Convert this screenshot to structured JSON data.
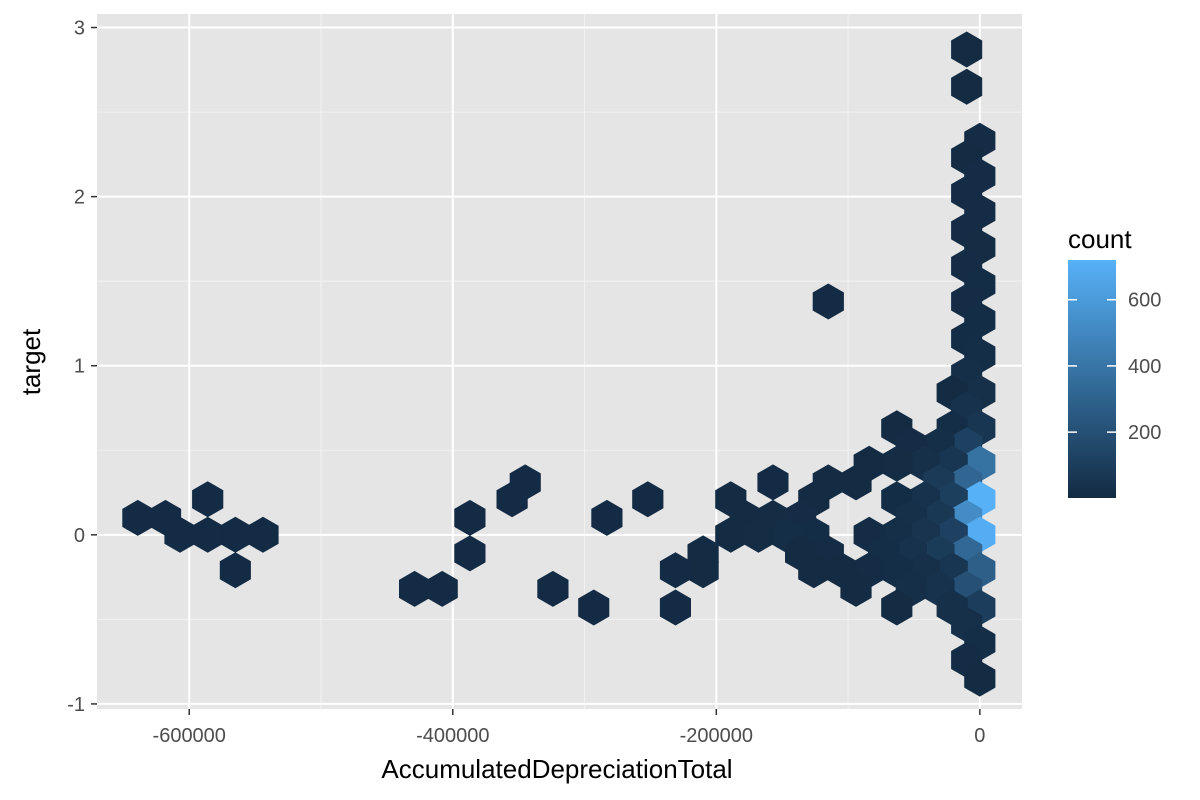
{
  "chart_data": {
    "type": "hexbin",
    "xlabel": "AccumulatedDepreciationTotal",
    "ylabel": "target",
    "xlim": [
      -670000,
      32000
    ],
    "ylim": [
      -1.03,
      3.08
    ],
    "x_ticks": [
      -600000,
      -400000,
      -200000,
      0
    ],
    "x_tick_labels": [
      "-600000",
      "-400000",
      "-200000",
      "0"
    ],
    "y_ticks": [
      -1,
      0,
      1,
      2,
      3
    ],
    "y_tick_labels": [
      "-1",
      "0",
      "1",
      "2",
      "3"
    ],
    "grid": true,
    "background": "#e5e5e5",
    "legend": {
      "title": "count",
      "position": "right",
      "range": [
        1,
        720
      ],
      "ticks": [
        200,
        400,
        600
      ],
      "tick_labels": [
        "200",
        "400",
        "600"
      ],
      "color_low": "#132b43",
      "color_high": "#56b1f7"
    },
    "bins": [
      {
        "x": -10000,
        "y": 2.87,
        "count": 5
      },
      {
        "x": -10000,
        "y": 2.65,
        "count": 5
      },
      {
        "x": 0,
        "y": 2.33,
        "count": 8
      },
      {
        "x": -10000,
        "y": 2.23,
        "count": 6
      },
      {
        "x": 0,
        "y": 2.12,
        "count": 8
      },
      {
        "x": -10000,
        "y": 2.02,
        "count": 7
      },
      {
        "x": 0,
        "y": 1.91,
        "count": 9
      },
      {
        "x": -10000,
        "y": 1.8,
        "count": 7
      },
      {
        "x": 0,
        "y": 1.7,
        "count": 10
      },
      {
        "x": -10000,
        "y": 1.59,
        "count": 8
      },
      {
        "x": 0,
        "y": 1.48,
        "count": 12
      },
      {
        "x": -10000,
        "y": 1.38,
        "count": 9
      },
      {
        "x": -115000,
        "y": 1.38,
        "count": 3
      },
      {
        "x": 0,
        "y": 1.27,
        "count": 14
      },
      {
        "x": -10000,
        "y": 1.16,
        "count": 12
      },
      {
        "x": 0,
        "y": 1.06,
        "count": 18
      },
      {
        "x": -10000,
        "y": 0.95,
        "count": 20
      },
      {
        "x": 0,
        "y": 0.84,
        "count": 30
      },
      {
        "x": -21000,
        "y": 0.84,
        "count": 6
      },
      {
        "x": -10000,
        "y": 0.74,
        "count": 40
      },
      {
        "x": 0,
        "y": 0.63,
        "count": 60
      },
      {
        "x": -21000,
        "y": 0.63,
        "count": 15
      },
      {
        "x": -63000,
        "y": 0.63,
        "count": 4
      },
      {
        "x": -10000,
        "y": 0.53,
        "count": 120
      },
      {
        "x": -31000,
        "y": 0.53,
        "count": 20
      },
      {
        "x": -52000,
        "y": 0.53,
        "count": 8
      },
      {
        "x": 0,
        "y": 0.42,
        "count": 380
      },
      {
        "x": -21000,
        "y": 0.42,
        "count": 60
      },
      {
        "x": -42000,
        "y": 0.42,
        "count": 30
      },
      {
        "x": -63000,
        "y": 0.42,
        "count": 10
      },
      {
        "x": -84000,
        "y": 0.42,
        "count": 5
      },
      {
        "x": -10000,
        "y": 0.31,
        "count": 320
      },
      {
        "x": -31000,
        "y": 0.31,
        "count": 80
      },
      {
        "x": -94000,
        "y": 0.31,
        "count": 6
      },
      {
        "x": -115000,
        "y": 0.31,
        "count": 4
      },
      {
        "x": -157000,
        "y": 0.31,
        "count": 3
      },
      {
        "x": -345000,
        "y": 0.31,
        "count": 3
      },
      {
        "x": 0,
        "y": 0.21,
        "count": 720
      },
      {
        "x": -21000,
        "y": 0.21,
        "count": 110
      },
      {
        "x": -42000,
        "y": 0.21,
        "count": 40
      },
      {
        "x": -63000,
        "y": 0.21,
        "count": 12
      },
      {
        "x": -126000,
        "y": 0.21,
        "count": 5
      },
      {
        "x": -189000,
        "y": 0.21,
        "count": 4
      },
      {
        "x": -252000,
        "y": 0.21,
        "count": 3
      },
      {
        "x": -355000,
        "y": 0.21,
        "count": 3
      },
      {
        "x": -586000,
        "y": 0.21,
        "count": 3
      },
      {
        "x": -10000,
        "y": 0.1,
        "count": 520
      },
      {
        "x": -31000,
        "y": 0.1,
        "count": 70
      },
      {
        "x": -52000,
        "y": 0.1,
        "count": 30
      },
      {
        "x": -136000,
        "y": 0.1,
        "count": 8
      },
      {
        "x": -157000,
        "y": 0.1,
        "count": 10
      },
      {
        "x": -178000,
        "y": 0.1,
        "count": 6
      },
      {
        "x": -283000,
        "y": 0.1,
        "count": 3
      },
      {
        "x": -387000,
        "y": 0.1,
        "count": 3
      },
      {
        "x": -618000,
        "y": 0.1,
        "count": 3
      },
      {
        "x": -639000,
        "y": 0.1,
        "count": 3
      },
      {
        "x": 0,
        "y": 0.0,
        "count": 700
      },
      {
        "x": -21000,
        "y": 0.0,
        "count": 120
      },
      {
        "x": -42000,
        "y": 0.0,
        "count": 50
      },
      {
        "x": -63000,
        "y": 0.0,
        "count": 20
      },
      {
        "x": -84000,
        "y": 0.0,
        "count": 8
      },
      {
        "x": -126000,
        "y": 0.0,
        "count": 12
      },
      {
        "x": -147000,
        "y": 0.0,
        "count": 15
      },
      {
        "x": -168000,
        "y": 0.0,
        "count": 10
      },
      {
        "x": -189000,
        "y": 0.0,
        "count": 6
      },
      {
        "x": -544000,
        "y": 0.0,
        "count": 3
      },
      {
        "x": -565000,
        "y": 0.0,
        "count": 3
      },
      {
        "x": -586000,
        "y": 0.0,
        "count": 3
      },
      {
        "x": -607000,
        "y": 0.0,
        "count": 3
      },
      {
        "x": -10000,
        "y": -0.11,
        "count": 330
      },
      {
        "x": -31000,
        "y": -0.11,
        "count": 90
      },
      {
        "x": -52000,
        "y": -0.11,
        "count": 40
      },
      {
        "x": -73000,
        "y": -0.11,
        "count": 15
      },
      {
        "x": -115000,
        "y": -0.11,
        "count": 8
      },
      {
        "x": -136000,
        "y": -0.11,
        "count": 6
      },
      {
        "x": -210000,
        "y": -0.11,
        "count": 4
      },
      {
        "x": -387000,
        "y": -0.11,
        "count": 3
      },
      {
        "x": 0,
        "y": -0.21,
        "count": 280
      },
      {
        "x": -21000,
        "y": -0.21,
        "count": 60
      },
      {
        "x": -42000,
        "y": -0.21,
        "count": 30
      },
      {
        "x": -63000,
        "y": -0.21,
        "count": 15
      },
      {
        "x": -84000,
        "y": -0.21,
        "count": 8
      },
      {
        "x": -105000,
        "y": -0.21,
        "count": 6
      },
      {
        "x": -126000,
        "y": -0.21,
        "count": 4
      },
      {
        "x": -210000,
        "y": -0.21,
        "count": 4
      },
      {
        "x": -231000,
        "y": -0.21,
        "count": 3
      },
      {
        "x": -565000,
        "y": -0.21,
        "count": 3
      },
      {
        "x": -10000,
        "y": -0.32,
        "count": 200
      },
      {
        "x": -31000,
        "y": -0.32,
        "count": 40
      },
      {
        "x": -52000,
        "y": -0.32,
        "count": 20
      },
      {
        "x": -94000,
        "y": -0.32,
        "count": 5
      },
      {
        "x": -324000,
        "y": -0.32,
        "count": 3
      },
      {
        "x": -408000,
        "y": -0.32,
        "count": 3
      },
      {
        "x": -429000,
        "y": -0.32,
        "count": 3
      },
      {
        "x": 0,
        "y": -0.43,
        "count": 100
      },
      {
        "x": -21000,
        "y": -0.43,
        "count": 30
      },
      {
        "x": -63000,
        "y": -0.43,
        "count": 6
      },
      {
        "x": -231000,
        "y": -0.43,
        "count": 3
      },
      {
        "x": -293000,
        "y": -0.43,
        "count": 3
      },
      {
        "x": -10000,
        "y": -0.53,
        "count": 30
      },
      {
        "x": 0,
        "y": -0.64,
        "count": 15
      },
      {
        "x": -10000,
        "y": -0.74,
        "count": 8
      },
      {
        "x": 0,
        "y": -0.85,
        "count": 6
      }
    ]
  }
}
